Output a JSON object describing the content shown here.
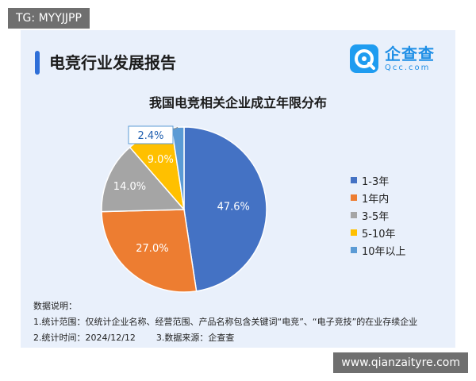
{
  "watermarks": {
    "top_tag": "TG: MYYJJPP",
    "bottom_tag": "www.qianzaityre.com"
  },
  "header": {
    "report_title": "电竞行业发展报告",
    "brand_name": "企查查",
    "brand_domain": "Qcc.com"
  },
  "chart_data": {
    "type": "pie",
    "title": "我国电竞相关企业成立年限分布",
    "categories": [
      "1-3年",
      "1年内",
      "3-5年",
      "5-10年",
      "10年以上"
    ],
    "values": [
      47.6,
      27.0,
      14.0,
      9.0,
      2.4
    ],
    "labels": [
      "47.6%",
      "27.0%",
      "14.0%",
      "9.0%",
      "2.4%"
    ],
    "colors": [
      "#4472c4",
      "#ed7d31",
      "#a5a5a5",
      "#ffc000",
      "#5b9bd5"
    ],
    "legend_position": "right"
  },
  "notes": {
    "heading": "数据说明：",
    "line1": "1.统计范围：仅统计企业名称、经营范围、产品名称包含关键词“电竞”、“电子竞技”的在业存续企业",
    "line2a": "2.统计时间：2024/12/12",
    "line2b": "3.数据来源：企查查"
  }
}
